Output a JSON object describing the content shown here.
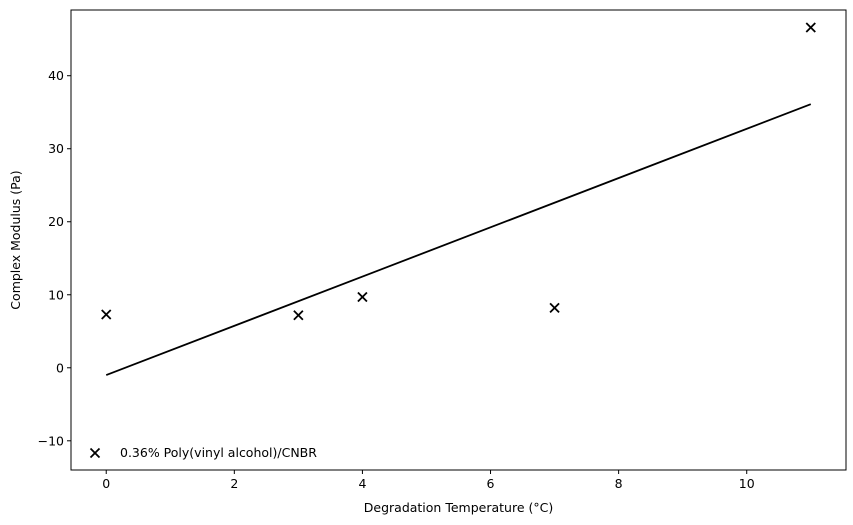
{
  "chart_data": {
    "type": "scatter",
    "title": "",
    "xlabel": "Degradation Temperature (°C)",
    "ylabel": "Complex Modulus (Pa)",
    "xlim": [
      -0.55,
      11.55
    ],
    "ylim": [
      -14,
      49
    ],
    "xticks": [
      0,
      2,
      4,
      6,
      8,
      10
    ],
    "yticks": [
      -10,
      0,
      10,
      20,
      30,
      40
    ],
    "grid": false,
    "legend_position": "lower-left",
    "series": [
      {
        "name": "0.36% Poly(vinyl alcohol)/CNBR",
        "marker": "x",
        "color": "#000000",
        "x": [
          0,
          3,
          4,
          7,
          11
        ],
        "y": [
          7.3,
          7.2,
          9.7,
          8.2,
          46.6
        ]
      }
    ],
    "fit_line": {
      "color": "#000000",
      "x": [
        0,
        11
      ],
      "y": [
        -1.0,
        36.1
      ]
    }
  }
}
